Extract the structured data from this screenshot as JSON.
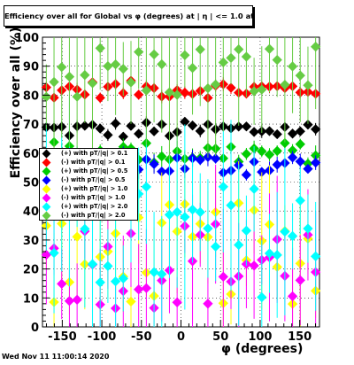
{
  "title": "Efficiency over all for Global vs φ (degrees) at | η | <= 1.0 at pT > 0.11",
  "timestamp": "Wed Nov 11 11:00:14 2020",
  "chart_data": {
    "type": "scatter",
    "xlabel": "φ (degrees)",
    "ylabel": "Efficiency over all (%)",
    "xlim": [
      -175,
      175
    ],
    "ylim": [
      0,
      100
    ],
    "x_ticks": [
      "-150",
      "-100",
      "-50",
      "0",
      "50",
      "100",
      "150"
    ],
    "y_ticks": [
      "0",
      "10",
      "20",
      "30",
      "40",
      "50",
      "60",
      "70",
      "80",
      "90",
      "100"
    ],
    "grid": true,
    "legend_position": "left-middle",
    "series": [
      {
        "name": "(+) with pT/|q| > 0.1",
        "color": "#000000",
        "level": 68,
        "spread": 3,
        "err": 2
      },
      {
        "name": "(-) with pT/|q| > 0.1",
        "color": "#ff0000",
        "level": 82,
        "spread": 3,
        "err": 2
      },
      {
        "name": "(+) with pT/|q| > 0.5",
        "color": "#00cc00",
        "level": 60,
        "spread": 4,
        "err": 3
      },
      {
        "name": "(-) with pT/|q| > 0.5",
        "color": "#0000ff",
        "level": 56,
        "spread": 4,
        "err": 3
      },
      {
        "name": "(+) with pT/|q| > 1.0",
        "color": "#ffff00",
        "level": 25,
        "spread": 18,
        "err": 20
      },
      {
        "name": "(-) with pT/|q| > 1.0",
        "color": "#ff00ff",
        "level": 22,
        "spread": 16,
        "err": 20
      },
      {
        "name": "(+) with pT/|q| > 2.0",
        "color": "#00ffff",
        "level": 30,
        "spread": 20,
        "err": 28
      },
      {
        "name": "(-) with pT/|q| > 2.0",
        "color": "#66cc44",
        "level": 88,
        "spread": 10,
        "err": 22
      }
    ]
  }
}
